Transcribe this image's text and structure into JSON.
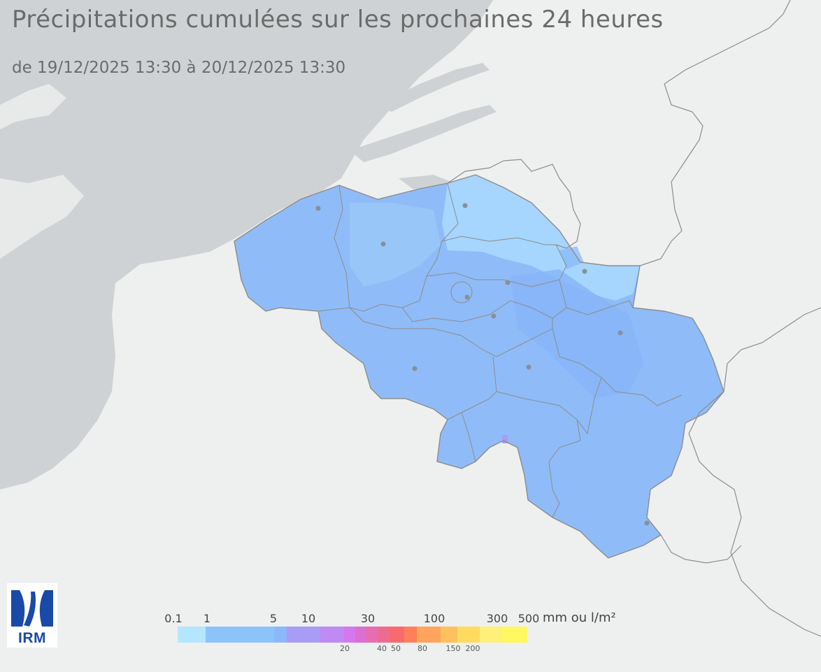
{
  "title": "Précipitations cumulées sur les prochaines 24 heures",
  "subtitle": "de 19/12/2025 13:30  à 20/12/2025 13:30",
  "logo": {
    "text": "IRM",
    "color": "#1a4aa8"
  },
  "map": {
    "sea_color": "#cfd2d4",
    "land_color": "#eef0f0",
    "belgium_base_color": "#8fbcf8",
    "border_color": "#8c8c8c"
  },
  "legend": {
    "unit": "mm ou l/m²",
    "top_labels": [
      "0.1",
      "1",
      "5",
      "10",
      "30",
      "100",
      "300",
      "500"
    ],
    "bottom_labels": [
      "20",
      "40",
      "50",
      "80",
      "150",
      "200"
    ],
    "colors": [
      "#b4e6ff",
      "#8cc3fa",
      "#8cb8fa",
      "#a99cf7",
      "#bf8af3",
      "#d478ee",
      "#dd6fd0",
      "#e56db0",
      "#ed6b93",
      "#f96a6e",
      "#fe7f5c",
      "#ffa45c",
      "#ffc05e",
      "#ffdc60",
      "#fff07a",
      "#fff860"
    ]
  }
}
